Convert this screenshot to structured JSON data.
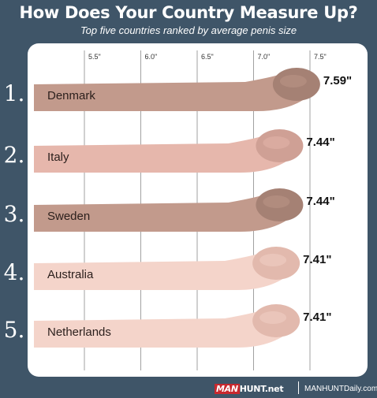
{
  "header": {
    "title": "How Does Your Country Measure Up?",
    "subtitle": "Top five countries ranked by average penis size"
  },
  "footer": {
    "logo_man": "MAN",
    "logo_rest": "HUNT.net",
    "site": "MANHUNTDaily.com"
  },
  "colors": {
    "background": "#3f5568",
    "panel": "#ffffff",
    "bar_dark": "#c29a8c",
    "tip_dark": "#a58174",
    "bar_light": "#e6b7ac",
    "tip_light": "#cfa095",
    "bar_pale": "#f4d4ca",
    "tip_pale": "#e2b9ad",
    "gridline": "#8a8a8a"
  },
  "chart_data": {
    "type": "bar",
    "orientation": "horizontal",
    "title": "How Does Your Country Measure Up?",
    "subtitle": "Top five countries ranked by average penis size",
    "xlim": [
      5.25,
      7.5
    ],
    "ticks": [
      5.5,
      6.0,
      6.5,
      7.0,
      7.5
    ],
    "tick_labels": [
      "5.5\"",
      "6.0\"",
      "6.5\"",
      "7.0\"",
      "7.5\""
    ],
    "grid": true,
    "bars": [
      {
        "rank": "1.",
        "category": "Denmark",
        "value": 7.59,
        "label": "7.59\"",
        "tone": "dark"
      },
      {
        "rank": "2.",
        "category": "Italy",
        "value": 7.44,
        "label": "7.44\"",
        "tone": "light"
      },
      {
        "rank": "3.",
        "category": "Sweden",
        "value": 7.44,
        "label": "7.44\"",
        "tone": "dark"
      },
      {
        "rank": "4.",
        "category": "Australia",
        "value": 7.41,
        "label": "7.41\"",
        "tone": "pale"
      },
      {
        "rank": "5.",
        "category": "Netherlands",
        "value": 7.41,
        "label": "7.41\"",
        "tone": "pale"
      }
    ]
  }
}
